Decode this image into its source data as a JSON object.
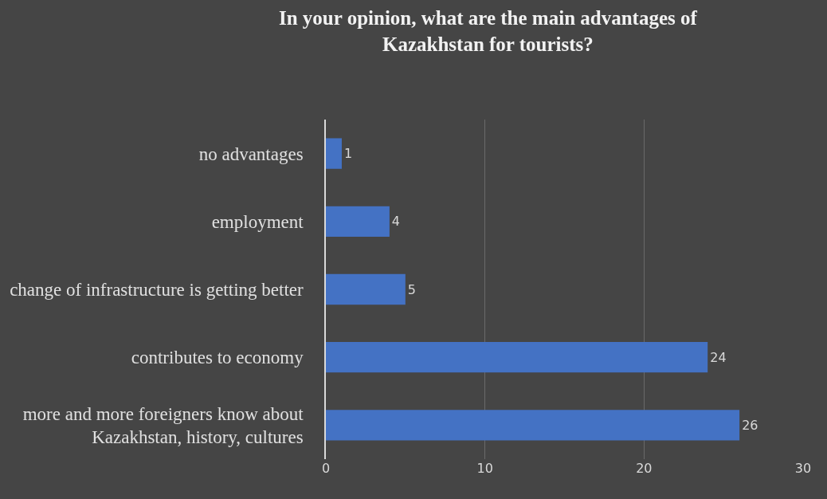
{
  "chart_data": {
    "type": "bar",
    "orientation": "horizontal",
    "title": "In your opinion, what are the main advantages of\nKazakhstan for tourists?",
    "categories": [
      "no advantages",
      "employment",
      "change of infrastructure is getting better",
      "contributes to economy",
      "more and more foreigners know about\nKazakhstan, history, cultures"
    ],
    "values": [
      1,
      4,
      5,
      24,
      26
    ],
    "color": "#4472c4",
    "xlim": [
      0,
      30
    ],
    "xticks": [
      0,
      10,
      20,
      30
    ],
    "grid": "x",
    "data_labels": true,
    "legend": false
  }
}
